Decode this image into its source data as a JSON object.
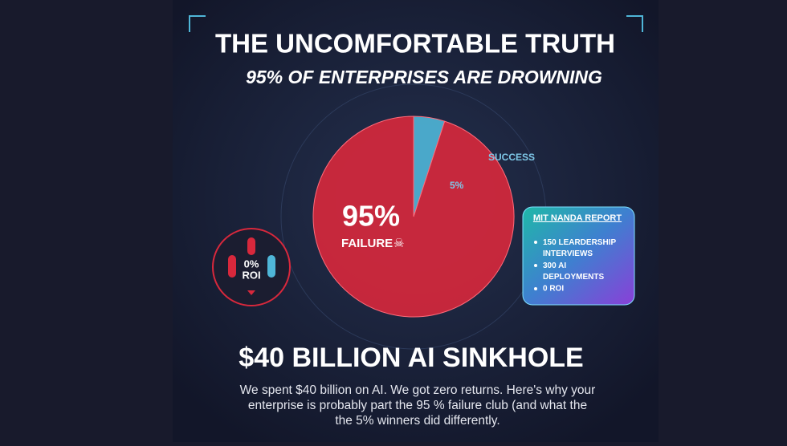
{
  "header": {
    "title": "THE UNCOMFORTABLE TRUTH",
    "subtitle": "95% OF ENTERPRISES ARE DROWNING"
  },
  "chart_data": {
    "type": "pie",
    "categories": [
      "FAILURE",
      "SUCCESS"
    ],
    "values": [
      95,
      5
    ],
    "value_labels": [
      "95%",
      "5%"
    ],
    "colors": [
      "#d8283c",
      "#4fb6d8"
    ]
  },
  "roi_badge": {
    "value": "0%",
    "label": "ROI"
  },
  "report": {
    "title": "MIT NANDA REPORT",
    "items": [
      "150 LEARDERSHIP INTERVIEWS",
      "300 AI DEPLOYMENTS",
      "0 ROI"
    ]
  },
  "headline": "$40 BILLION AI SINKHOLE",
  "paragraph": {
    "lines": [
      "We spent $40 billion on AI. We got zero returns. Here's why your",
      "enterprise is probably part the 95 % failure club (and what the",
      "the 5% winners did differently."
    ]
  }
}
